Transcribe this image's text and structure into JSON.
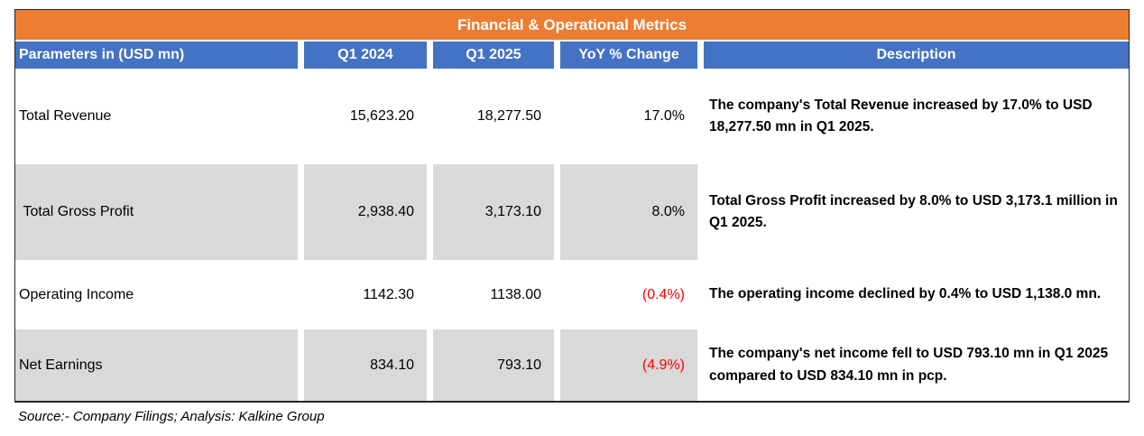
{
  "title": "Financial & Operational Metrics",
  "colors": {
    "orange": "#ED7D31",
    "blue": "#4472C4",
    "gray": "#D9D9D9",
    "red": "#FF0000"
  },
  "table": {
    "columns": {
      "parameter": "Parameters in (USD mn)",
      "q1_2024": "Q1 2024",
      "q1_2025": "Q1 2025",
      "yoy": "YoY % Change",
      "description": "Description"
    },
    "rows": [
      {
        "parameter": "Total Revenue",
        "q1_2024": "15,623.20",
        "q1_2025": "18,277.50",
        "yoy": "17.0%",
        "description": "The company's Total Revenue increased  by 17.0% to USD 18,277.50 mn in Q1 2025."
      },
      {
        "parameter": " Total Gross Profit",
        "q1_2024": "2,938.40",
        "q1_2025": "3,173.10",
        "yoy": "8.0%",
        "description": "Total Gross Profit increased by 8.0% to USD 3,173.1 million in Q1 2025."
      },
      {
        "parameter": "Operating Income",
        "q1_2024": "1142.30",
        "q1_2025": "1138.00",
        "yoy": "(0.4%)",
        "description": "The operating income declined by 0.4% to USD 1,138.0 mn."
      },
      {
        "parameter": "Net Earnings",
        "q1_2024": "834.10",
        "q1_2025": "793.10",
        "yoy": "(4.9%)",
        "description": "The company's net income fell to USD 793.10 mn in Q1 2025 compared to USD 834.10  mn in pcp."
      }
    ]
  },
  "source_note": "Source:- Company Filings; Analysis: Kalkine Group"
}
